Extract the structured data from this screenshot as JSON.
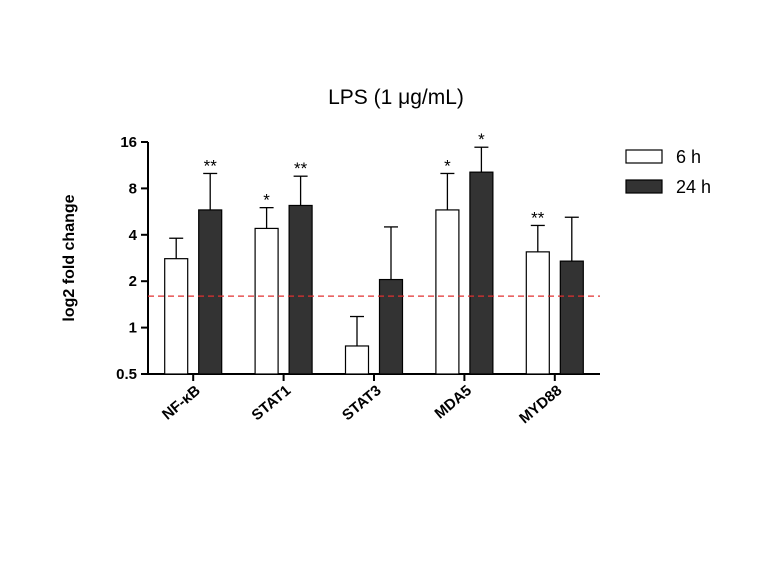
{
  "chart_data": {
    "type": "bar",
    "title": "LPS (1 μg/mL)",
    "xlabel": "",
    "ylabel": "log2 fold change",
    "y_scale": "log2",
    "ylim": [
      0.5,
      16
    ],
    "yticks": [
      0.5,
      1,
      2,
      4,
      8,
      16
    ],
    "ytick_labels": [
      "0.5",
      "1",
      "2",
      "4",
      "8",
      "16"
    ],
    "categories": [
      "NF-κB",
      "STAT1",
      "STAT3",
      "MDA5",
      "MYD88"
    ],
    "series": [
      {
        "name": "6 h",
        "color": "#ffffff",
        "values": [
          2.8,
          4.4,
          0.76,
          5.8,
          3.1
        ],
        "error_upper": [
          3.8,
          6.0,
          1.18,
          10.0,
          4.6
        ],
        "significance": [
          "",
          "*",
          "",
          "*",
          "**"
        ]
      },
      {
        "name": "24 h",
        "color": "#333333",
        "values": [
          5.8,
          6.2,
          2.05,
          10.2,
          2.7
        ],
        "error_upper": [
          10.0,
          9.6,
          4.5,
          14.8,
          5.2
        ],
        "significance": [
          "**",
          "**",
          "",
          "*",
          ""
        ]
      }
    ],
    "threshold_line": {
      "value": 1.6,
      "style": "dashed",
      "color": "#e03030"
    },
    "legend_position": "top-right",
    "grid": false
  }
}
